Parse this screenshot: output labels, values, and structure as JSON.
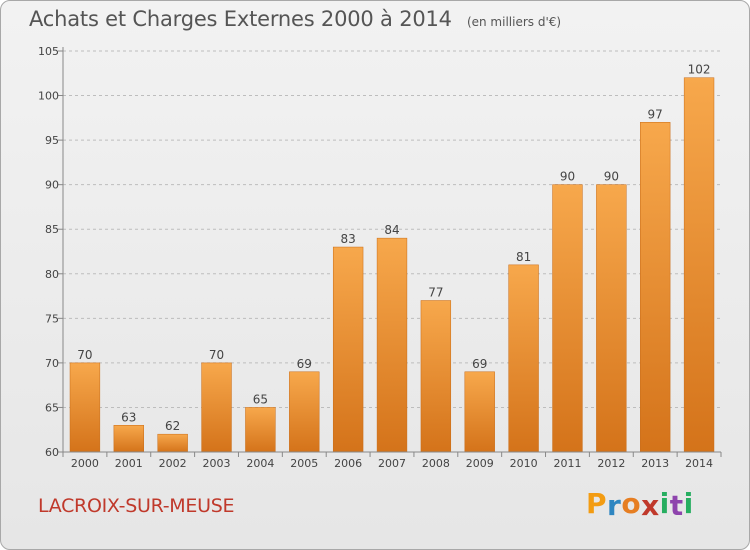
{
  "title": "Achats et Charges Externes 2000 à 2014",
  "unit": "(en milliers d'€)",
  "commune": "LACROIX-SUR-MEUSE",
  "brand": {
    "letters": [
      "P",
      "r",
      "o",
      "x",
      "i",
      "t",
      "i"
    ],
    "colors": [
      "#f39c12",
      "#2e86c1",
      "#e67e22",
      "#c0392b",
      "#27ae60",
      "#8e44ad",
      "#27ae60"
    ]
  },
  "colors": {
    "bar_top": "#f7a84c",
    "bar_bottom": "#d4731a",
    "bar_edge": "#c86a14",
    "grid": "#bdbdbd",
    "axis": "#888888",
    "title": "#555555",
    "commune": "#c0392b"
  },
  "chart_data": {
    "type": "bar",
    "title": "Achats et Charges Externes 2000 à 2014",
    "subtitle": "(en milliers d'€)",
    "categories": [
      "2000",
      "2001",
      "2002",
      "2003",
      "2004",
      "2005",
      "2006",
      "2007",
      "2008",
      "2009",
      "2010",
      "2011",
      "2012",
      "2013",
      "2014"
    ],
    "values": [
      70,
      63,
      62,
      70,
      65,
      69,
      83,
      84,
      77,
      69,
      81,
      90,
      90,
      97,
      102
    ],
    "ylim": [
      60,
      105
    ],
    "yticks": [
      60,
      65,
      70,
      75,
      80,
      85,
      90,
      95,
      100,
      105
    ],
    "grid": true,
    "xlabel": "",
    "ylabel": ""
  }
}
